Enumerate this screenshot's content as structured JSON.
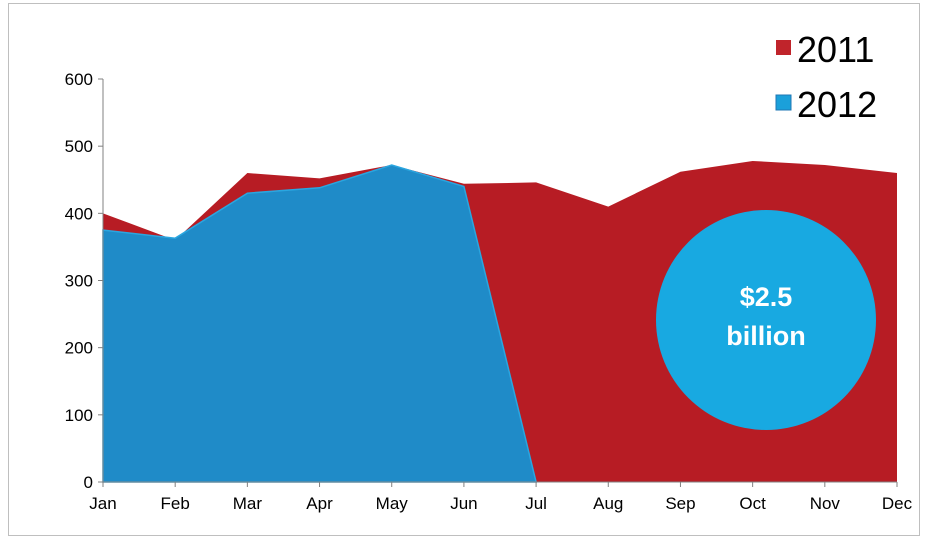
{
  "chart_data": {
    "type": "area",
    "categories": [
      "Jan",
      "Feb",
      "Mar",
      "Apr",
      "May",
      "Jun",
      "Jul",
      "Aug",
      "Sep",
      "Oct",
      "Nov",
      "Dec"
    ],
    "series": [
      {
        "name": "2011",
        "color": "#b71c24",
        "values": [
          400,
          360,
          460,
          452,
          472,
          444,
          446,
          410,
          462,
          478,
          472,
          460
        ]
      },
      {
        "name": "2012",
        "color": "#1f8bc8",
        "values": [
          375,
          363,
          430,
          438,
          472,
          440,
          0,
          null,
          null,
          null,
          null,
          null
        ]
      }
    ],
    "ylim": [
      0,
      600
    ],
    "yticks": [
      0,
      100,
      200,
      300,
      400,
      500,
      600
    ],
    "grid": false,
    "legend_position": "top-right",
    "title": "",
    "xlabel": "",
    "ylabel": ""
  },
  "callout": {
    "line1": "$2.5",
    "line2": "billion",
    "color": "#18a9e1"
  },
  "legend_marker_colors": {
    "2011": "#c0242b",
    "2012": "#1ba0da"
  }
}
